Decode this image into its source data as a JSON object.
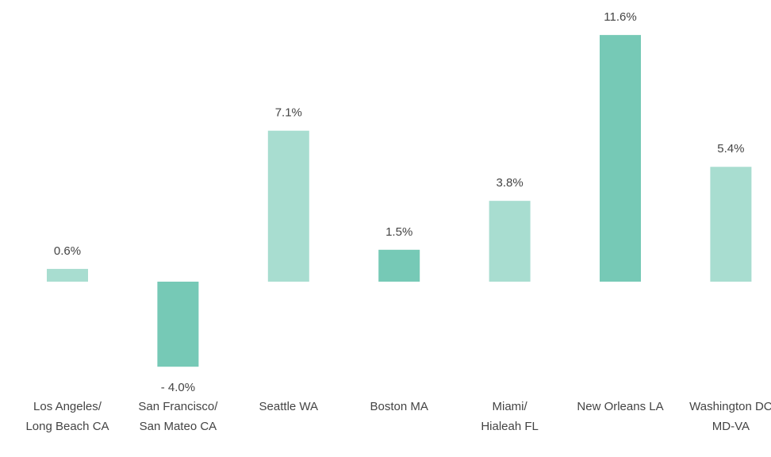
{
  "chart_data": {
    "type": "bar",
    "categories": [
      [
        "Los Angeles/",
        "Long Beach CA"
      ],
      [
        "San Francisco/",
        "San Mateo CA"
      ],
      [
        "Seattle WA"
      ],
      [
        "Boston MA"
      ],
      [
        "Miami/",
        "Hialeah FL"
      ],
      [
        "New Orleans LA"
      ],
      [
        "Washington DC",
        "MD-VA"
      ]
    ],
    "values": [
      0.6,
      -4.0,
      7.1,
      1.5,
      3.8,
      11.6,
      5.4
    ],
    "value_labels": [
      "0.6%",
      "- 4.0%",
      "7.1%",
      "1.5%",
      "3.8%",
      "11.6%",
      "5.4%"
    ],
    "colors": [
      "#a8ddd0",
      "#76c9b6",
      "#a8ddd0",
      "#76c9b6",
      "#a8ddd0",
      "#76c9b6",
      "#a8ddd0"
    ]
  }
}
